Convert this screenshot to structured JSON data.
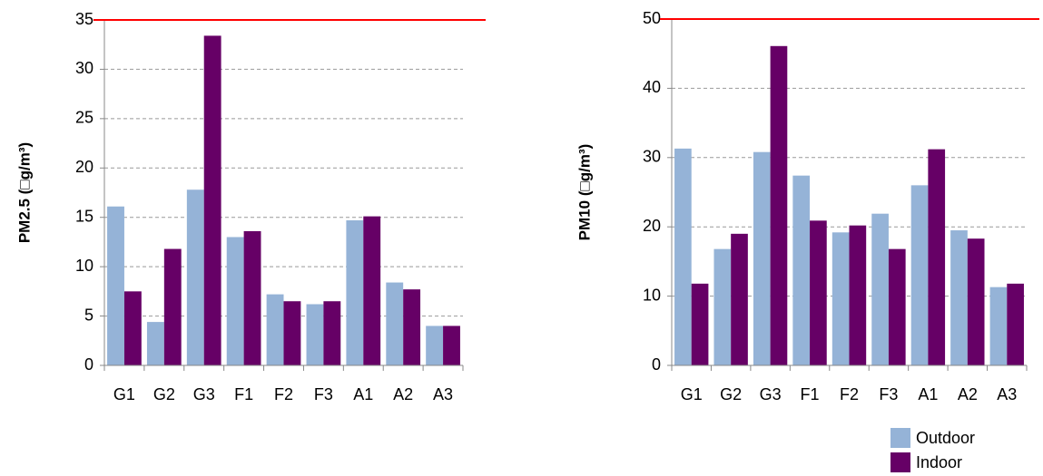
{
  "chart_data": [
    {
      "type": "bar",
      "y_label": "PM2.5 (□g/m³)",
      "categories": [
        "G1",
        "G2",
        "G3",
        "F1",
        "F2",
        "F3",
        "A1",
        "A2",
        "A3"
      ],
      "series": [
        {
          "color": "#95b3d7",
          "values": [
            16.1,
            4.4,
            17.8,
            13.0,
            7.2,
            6.2,
            14.7,
            8.4,
            4.0
          ]
        },
        {
          "color": "#660066",
          "values": [
            7.5,
            11.8,
            33.4,
            13.6,
            6.5,
            6.5,
            15.1,
            7.7,
            4.0
          ]
        }
      ],
      "ylim": [
        0,
        35
      ],
      "yticks": [
        0,
        5,
        10,
        15,
        20,
        25,
        30,
        35
      ],
      "grid": true,
      "limit_line": {
        "value": 35,
        "color": "#ff0000"
      }
    },
    {
      "type": "bar",
      "y_label": "PM10 (□g/m³)",
      "categories": [
        "G1",
        "G2",
        "G3",
        "F1",
        "F2",
        "F3",
        "A1",
        "A2",
        "A3"
      ],
      "series": [
        {
          "name": "Outdoor",
          "color": "#95b3d7",
          "values": [
            31.3,
            16.8,
            30.8,
            27.4,
            19.2,
            21.9,
            26.0,
            19.5,
            11.3
          ]
        },
        {
          "name": "Indoor",
          "color": "#660066",
          "values": [
            11.8,
            19.0,
            46.1,
            20.9,
            20.2,
            16.8,
            31.2,
            18.3,
            11.8
          ]
        }
      ],
      "ylim": [
        0,
        50
      ],
      "yticks": [
        0,
        10,
        20,
        30,
        40,
        50
      ],
      "grid": true,
      "limit_line": {
        "value": 50,
        "color": "#ff0000"
      },
      "legend": "bottom-right"
    }
  ]
}
